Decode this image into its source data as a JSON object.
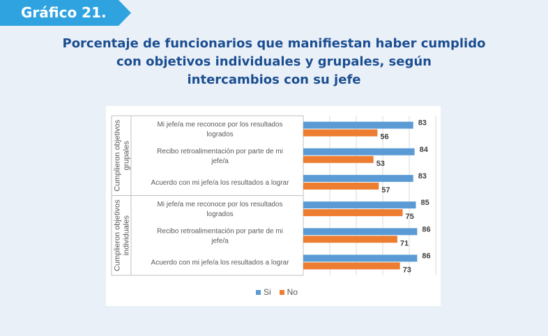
{
  "badge": {
    "label": "Gráfico 21."
  },
  "colors": {
    "badge": "#2ea3e0",
    "title": "#1b4e91",
    "si": "#5b9bd5",
    "no": "#ed7d31",
    "panel": "#ffffff",
    "background": "#eaf0f8"
  },
  "chart_data": {
    "type": "bar",
    "orientation": "horizontal",
    "title": "Porcentaje de funcionarios que manifiestan haber cumplido con objetivos individuales y grupales, según intercambios con su jefe",
    "title_lines": [
      "Porcentaje de funcionarios que manifiestan haber cumplido",
      "con objetivos individuales y grupales, según",
      "intercambios con su jefe"
    ],
    "groups": [
      {
        "label_lines": [
          "Cumplieron objetivos",
          "grupales"
        ],
        "categories": [
          {
            "label_lines": [
              "Mi jefe/a me reconoce por los resultados",
              "logrados"
            ],
            "si": 83,
            "no": 56
          },
          {
            "label_lines": [
              "Recibo retroalimentación por parte de mi",
              "jefe/a"
            ],
            "si": 84,
            "no": 53
          },
          {
            "label_lines": [
              "Acuerdo con mi jefe/a los resultados a lograr"
            ],
            "si": 83,
            "no": 57
          }
        ]
      },
      {
        "label_lines": [
          "Cumplieron objetivos",
          "individuales"
        ],
        "categories": [
          {
            "label_lines": [
              "Mi jefe/a me reconoce por los resultados",
              "logrados"
            ],
            "si": 85,
            "no": 75
          },
          {
            "label_lines": [
              "Recibo retroalimentación por parte de mi",
              "jefe/a"
            ],
            "si": 86,
            "no": 71
          },
          {
            "label_lines": [
              "Acuerdo con mi jefe/a los resultados a lograr"
            ],
            "si": 86,
            "no": 73
          }
        ]
      }
    ],
    "series": [
      {
        "name": "Si",
        "key": "si"
      },
      {
        "name": "No",
        "key": "no"
      }
    ],
    "xlim": [
      0,
      100
    ],
    "grid": true,
    "legend_position": "bottom"
  }
}
